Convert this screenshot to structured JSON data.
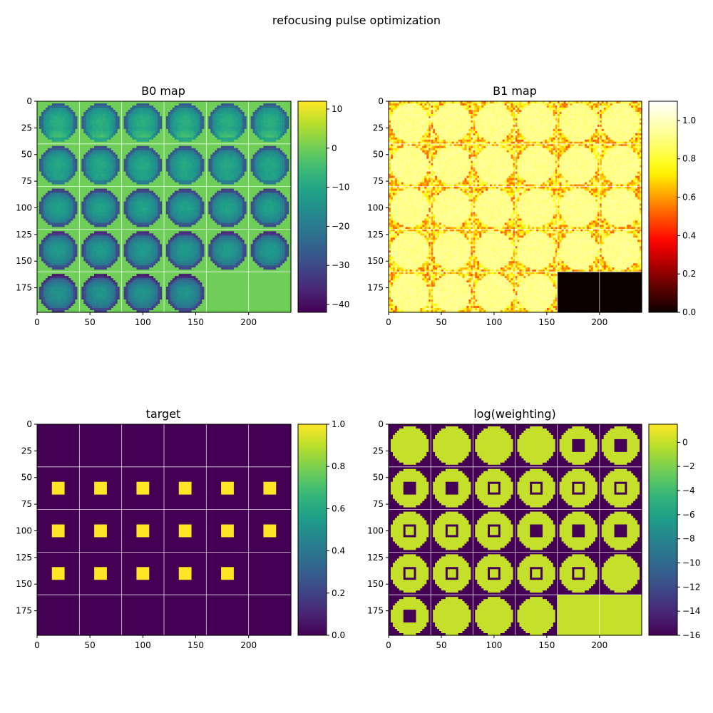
{
  "figure": {
    "title": "refocusing pulse optimization"
  },
  "chart_data": [
    {
      "type": "heatmap",
      "title": "B0 map",
      "colormap": "viridis",
      "xlim": [
        0,
        240
      ],
      "ylim": [
        198,
        0
      ],
      "xticks": [
        0,
        50,
        100,
        150,
        200
      ],
      "yticks": [
        0,
        25,
        50,
        75,
        100,
        125,
        150,
        175
      ],
      "grid": {
        "rows": 5,
        "cols": 6,
        "tile_size": 40
      },
      "background_value": 0,
      "n_slices": 28,
      "phantom": {
        "kind": "b0",
        "center_value": -8,
        "edge_value": -30,
        "hot_spot": 12
      },
      "colorbar": {
        "min": -42,
        "max": 12,
        "ticks": [
          10,
          0,
          -10,
          -20,
          -30,
          -40
        ],
        "tick_labels": [
          "10",
          "0",
          "−10",
          "−20",
          "−30",
          "−40"
        ]
      }
    },
    {
      "type": "heatmap",
      "title": "B1 map",
      "colormap": "hot",
      "xlim": [
        0,
        240
      ],
      "ylim": [
        198,
        0
      ],
      "xticks": [
        0,
        50,
        100,
        150,
        200
      ],
      "yticks": [
        0,
        25,
        50,
        75,
        100,
        125,
        150,
        175
      ],
      "grid": {
        "rows": 5,
        "cols": 6,
        "tile_size": 40
      },
      "background_value": 0.75,
      "noisy_background": true,
      "n_slices": 28,
      "empty_value": 0.0,
      "phantom": {
        "kind": "b1",
        "value": 0.92
      },
      "colorbar": {
        "min": 0.0,
        "max": 1.1,
        "ticks": [
          0.0,
          0.2,
          0.4,
          0.6,
          0.8,
          1.0
        ],
        "tick_labels": [
          "0.0",
          "0.2",
          "0.4",
          "0.6",
          "0.8",
          "1.0"
        ]
      }
    },
    {
      "type": "heatmap",
      "title": "target",
      "colormap": "viridis",
      "xlim": [
        0,
        240
      ],
      "ylim": [
        198,
        0
      ],
      "xticks": [
        0,
        50,
        100,
        150,
        200
      ],
      "yticks": [
        0,
        25,
        50,
        75,
        100,
        125,
        150,
        175
      ],
      "grid": {
        "rows": 5,
        "cols": 6,
        "tile_size": 40
      },
      "background_value": 0,
      "square_value": 1,
      "square_tiles": [
        6,
        7,
        8,
        9,
        10,
        11,
        12,
        13,
        14,
        15,
        16,
        17,
        18,
        19,
        20,
        21,
        22
      ],
      "colorbar": {
        "min": 0.0,
        "max": 1.0,
        "ticks": [
          0.0,
          0.2,
          0.4,
          0.6,
          0.8,
          1.0
        ],
        "tick_labels": [
          "0.0",
          "0.2",
          "0.4",
          "0.6",
          "0.8",
          "1.0"
        ]
      }
    },
    {
      "type": "heatmap",
      "title": "log(weighting)",
      "colormap": "viridis",
      "xlim": [
        0,
        240
      ],
      "ylim": [
        198,
        0
      ],
      "xticks": [
        0,
        50,
        100,
        150,
        200
      ],
      "yticks": [
        0,
        25,
        50,
        75,
        100,
        125,
        150,
        175
      ],
      "grid": {
        "rows": 5,
        "cols": 6,
        "tile_size": 40
      },
      "background_value": -16,
      "phantom_value": 0,
      "square_value": -16,
      "n_slices": 28,
      "empty_value": 0,
      "solid_square_tiles": [
        4,
        5,
        6,
        7,
        15,
        16,
        17,
        24
      ],
      "ring_square_tiles": [
        8,
        9,
        10,
        11,
        12,
        13,
        14,
        18,
        19,
        20,
        21,
        22
      ],
      "colorbar": {
        "min": -16,
        "max": 1.5,
        "ticks": [
          0,
          -2,
          -4,
          -6,
          -8,
          -10,
          -12,
          -14,
          -16
        ],
        "tick_labels": [
          "0",
          "−2",
          "−4",
          "−6",
          "−8",
          "−10",
          "−12",
          "−14",
          "−16"
        ]
      }
    }
  ]
}
